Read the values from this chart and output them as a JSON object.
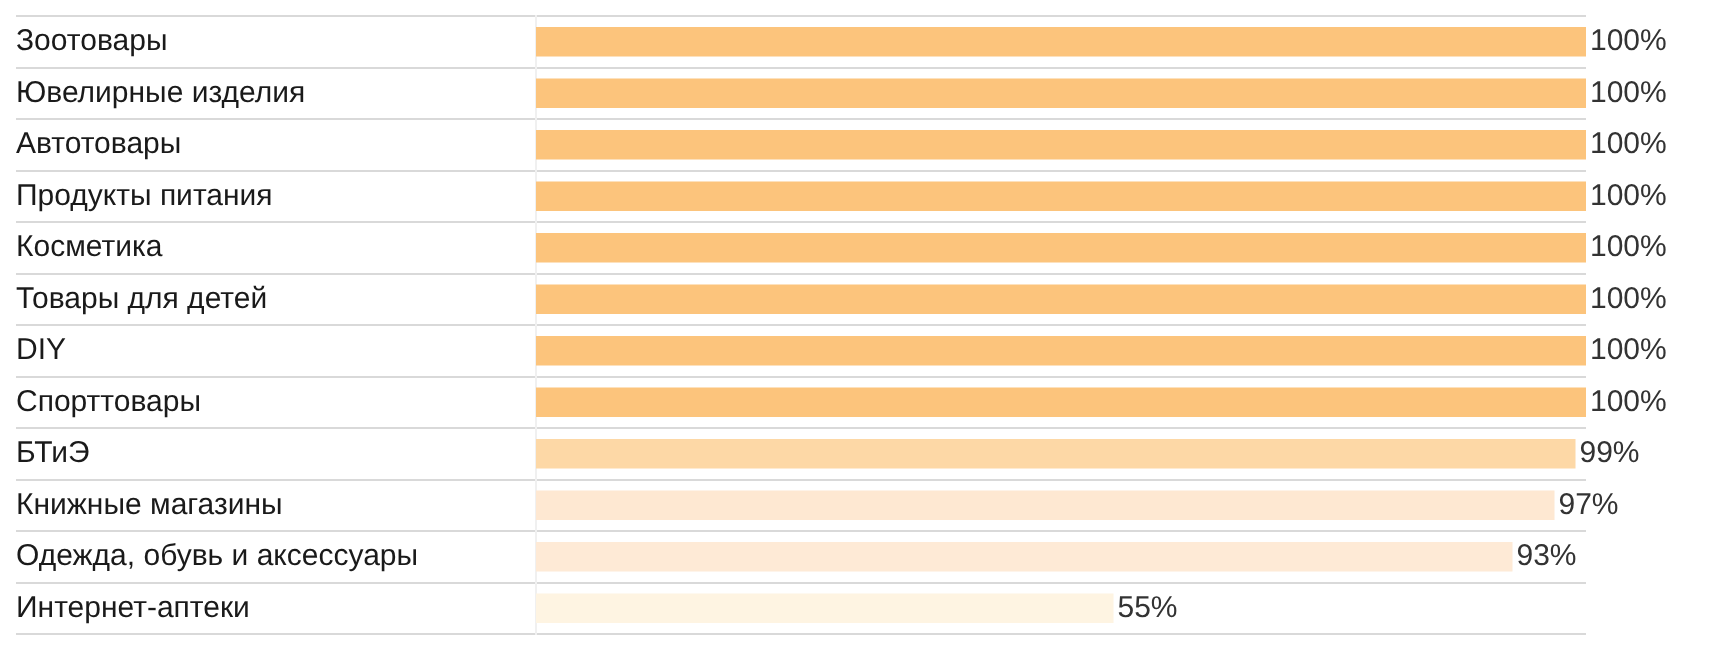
{
  "chart_data": {
    "type": "bar",
    "orientation": "horizontal",
    "categories": [
      "Зоотовары",
      "Ювелирные изделия",
      "Автотовары",
      "Продукты питания",
      "Косметика",
      "Товары для детей",
      "DIY",
      "Спорттовары",
      "БТиЭ",
      "Книжные магазины",
      "Одежда, обувь и аксессуары",
      "Интернет-аптеки"
    ],
    "values": [
      100,
      100,
      100,
      100,
      100,
      100,
      100,
      100,
      99,
      97,
      93,
      55
    ],
    "colors": [
      "#fcc47c",
      "#fcc47c",
      "#fcc47c",
      "#fcc47c",
      "#fcc47c",
      "#fcc47c",
      "#fcc47c",
      "#fcc47c",
      "#fdd8a6",
      "#fee8d2",
      "#feead6",
      "#fef4e2"
    ],
    "value_labels": [
      "100%",
      "100%",
      "100%",
      "100%",
      "100%",
      "100%",
      "100%",
      "100%",
      "99%",
      "97%",
      "93%",
      "55%"
    ],
    "xlim": [
      0,
      100
    ],
    "tick_labels": "y",
    "grid": "y",
    "legend": false
  }
}
